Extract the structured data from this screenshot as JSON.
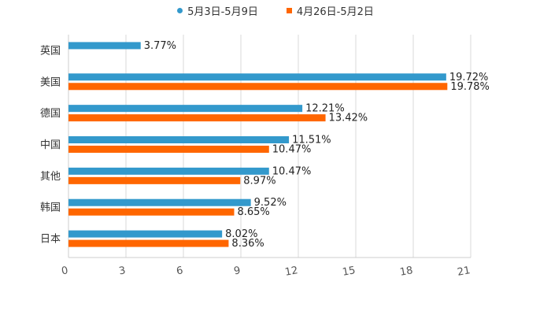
{
  "chart_data": {
    "type": "bar",
    "orientation": "horizontal",
    "categories": [
      "英国",
      "美国",
      "德国",
      "中国",
      "其他",
      "韩国",
      "日本"
    ],
    "series": [
      {
        "name": "5月3日-5月9日",
        "color": "#3399cc",
        "marker": "circle",
        "values": [
          3.77,
          19.72,
          12.21,
          11.51,
          10.47,
          9.52,
          8.02
        ],
        "labels": [
          "3.77%",
          "19.72%",
          "12.21%",
          "11.51%",
          "10.47%",
          "9.52%",
          "8.02%"
        ]
      },
      {
        "name": "4月26日-5月2日",
        "color": "#ff6600",
        "marker": "square",
        "values": [
          null,
          19.78,
          13.42,
          10.47,
          8.97,
          8.65,
          8.36
        ],
        "labels": [
          null,
          "19.78%",
          "13.42%",
          "10.47%",
          "8.97%",
          "8.65%",
          "8.36%"
        ]
      }
    ],
    "xlim": [
      0,
      21
    ],
    "xticks": [
      0,
      3,
      6,
      9,
      12,
      15,
      18,
      21
    ],
    "xtick_labels": [
      "0",
      "3",
      "6",
      "9",
      "12",
      "15",
      "18",
      "21"
    ],
    "grid": "vertical",
    "legend": "top-center",
    "title": "",
    "xlabel": "",
    "ylabel": ""
  }
}
